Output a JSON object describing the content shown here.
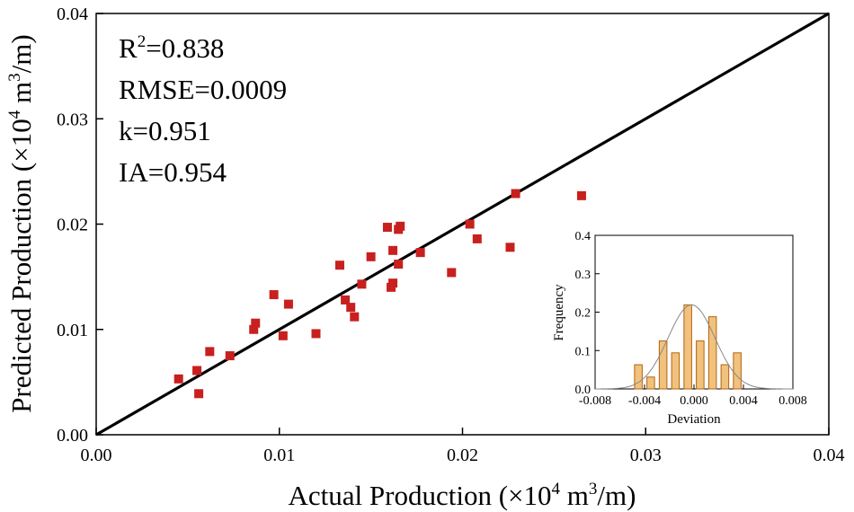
{
  "colors": {
    "point": "#c8201e",
    "bar_fill": "#f1c27d",
    "bar_stroke": "#b2630f",
    "line": "#000000",
    "curve": "#888888"
  },
  "chart_data": [
    {
      "type": "scatter",
      "xlabel": {
        "main": "Actual Production (×10",
        "sup1": "4",
        "mid": " m",
        "sup2": "3",
        "end": "/m)"
      },
      "ylabel": {
        "main": "Predicted Production (×10",
        "sup1": "4",
        "mid": " m",
        "sup2": "3",
        "end": "/m)"
      },
      "xlim": [
        0,
        0.04
      ],
      "ylim": [
        0,
        0.04
      ],
      "xticks": [
        "0.00",
        "0.01",
        "0.02",
        "0.03",
        "0.04"
      ],
      "yticks": [
        "0.00",
        "0.01",
        "0.02",
        "0.03",
        "0.04"
      ],
      "reference_line": {
        "from": [
          0,
          0
        ],
        "to": [
          0.04,
          0.04
        ]
      },
      "stats": [
        {
          "pre": "R",
          "sup": "2",
          "post": "=0.838"
        },
        {
          "pre": "RMSE=0.0009",
          "sup": "",
          "post": ""
        },
        {
          "pre": "k=0.951",
          "sup": "",
          "post": ""
        },
        {
          "pre": "IA=0.954",
          "sup": "",
          "post": ""
        }
      ],
      "points": [
        [
          0.0045,
          0.0053
        ],
        [
          0.0055,
          0.0061
        ],
        [
          0.0056,
          0.0039
        ],
        [
          0.0062,
          0.0079
        ],
        [
          0.0073,
          0.0075
        ],
        [
          0.0086,
          0.01
        ],
        [
          0.0087,
          0.0106
        ],
        [
          0.0097,
          0.0133
        ],
        [
          0.0102,
          0.0094
        ],
        [
          0.0105,
          0.0124
        ],
        [
          0.012,
          0.0096
        ],
        [
          0.0133,
          0.0161
        ],
        [
          0.0136,
          0.0128
        ],
        [
          0.0139,
          0.0121
        ],
        [
          0.0141,
          0.0112
        ],
        [
          0.0145,
          0.0143
        ],
        [
          0.015,
          0.0169
        ],
        [
          0.0159,
          0.0197
        ],
        [
          0.0161,
          0.014
        ],
        [
          0.0162,
          0.0144
        ],
        [
          0.0162,
          0.0175
        ],
        [
          0.0165,
          0.0162
        ],
        [
          0.0165,
          0.0195
        ],
        [
          0.0166,
          0.0198
        ],
        [
          0.0177,
          0.0173
        ],
        [
          0.0194,
          0.0154
        ],
        [
          0.0204,
          0.02
        ],
        [
          0.0208,
          0.0186
        ],
        [
          0.0226,
          0.0178
        ],
        [
          0.0229,
          0.0229
        ],
        [
          0.0265,
          0.0227
        ]
      ]
    },
    {
      "type": "bar",
      "subtype": "histogram-inset",
      "xlabel": "Deviation",
      "ylabel": "Frequency",
      "xlim": [
        -0.008,
        0.008
      ],
      "ylim": [
        0,
        0.4
      ],
      "xticks": [
        "-0.008",
        "-0.004",
        "0.000",
        "0.004",
        "0.008"
      ],
      "yticks": [
        "0.0",
        "0.1",
        "0.2",
        "0.3",
        "0.4"
      ],
      "bin_centers": [
        -0.0045,
        -0.0035,
        -0.0025,
        -0.0015,
        -0.0005,
        0.0005,
        0.0015,
        0.0025,
        0.0035
      ],
      "values": [
        0.063,
        0.031,
        0.125,
        0.094,
        0.219,
        0.125,
        0.188,
        0.063,
        0.094
      ],
      "normal_curve": {
        "mean": -0.0002,
        "sd": 0.0019,
        "peak": 0.219
      }
    }
  ]
}
